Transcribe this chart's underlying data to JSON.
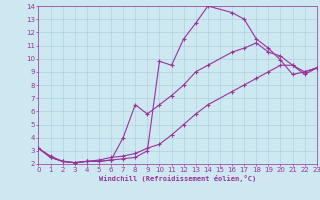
{
  "xlabel": "Windchill (Refroidissement éolien,°C)",
  "bg_color": "#cde8f0",
  "grid_color": "#aaccdd",
  "line_color": "#993399",
  "xlim": [
    0,
    23
  ],
  "ylim": [
    2,
    14
  ],
  "xticks": [
    0,
    1,
    2,
    3,
    4,
    5,
    6,
    7,
    8,
    9,
    10,
    11,
    12,
    13,
    14,
    15,
    16,
    17,
    18,
    19,
    20,
    21,
    22,
    23
  ],
  "yticks": [
    2,
    3,
    4,
    5,
    6,
    7,
    8,
    9,
    10,
    11,
    12,
    13,
    14
  ],
  "line1_x": [
    0,
    1,
    2,
    3,
    4,
    5,
    6,
    7,
    8,
    9,
    10,
    11,
    12,
    13,
    14,
    16,
    17,
    18,
    19,
    20,
    21,
    22,
    23
  ],
  "line1_y": [
    3.2,
    2.5,
    2.2,
    2.1,
    2.2,
    2.2,
    2.3,
    2.4,
    2.5,
    3.0,
    9.8,
    9.5,
    11.5,
    12.7,
    14.0,
    13.5,
    13.0,
    11.5,
    10.8,
    9.9,
    8.8,
    9.0,
    9.3
  ],
  "line2_x": [
    0,
    1,
    2,
    3,
    4,
    5,
    6,
    7,
    8,
    9,
    10,
    11,
    12,
    13,
    14,
    16,
    17,
    18,
    19,
    20,
    21,
    22,
    23
  ],
  "line2_y": [
    3.2,
    2.5,
    2.2,
    2.1,
    2.2,
    2.2,
    2.3,
    4.0,
    6.5,
    5.8,
    6.5,
    7.2,
    8.0,
    9.0,
    9.5,
    10.5,
    10.8,
    11.2,
    10.5,
    10.2,
    9.5,
    9.0,
    9.3
  ],
  "line3_x": [
    0,
    1,
    2,
    3,
    4,
    5,
    6,
    7,
    8,
    9,
    10,
    11,
    12,
    13,
    14,
    16,
    17,
    18,
    19,
    20,
    21,
    22,
    23
  ],
  "line3_y": [
    3.2,
    2.6,
    2.2,
    2.1,
    2.2,
    2.3,
    2.5,
    2.6,
    2.8,
    3.2,
    3.5,
    4.2,
    5.0,
    5.8,
    6.5,
    7.5,
    8.0,
    8.5,
    9.0,
    9.5,
    9.5,
    8.8,
    9.3
  ]
}
